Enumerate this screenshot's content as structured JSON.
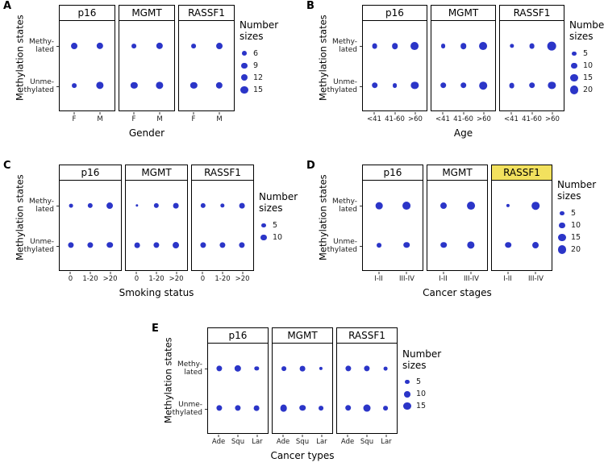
{
  "shared": {
    "ylabel": "Methylation states",
    "y_categories": [
      "Methylated",
      "Unmethylated"
    ],
    "y_tick_labels": [
      [
        "Methy-",
        "lated"
      ],
      [
        "Unme-",
        "thylated"
      ]
    ],
    "legend_title_lines": [
      "Number",
      "sizes"
    ],
    "dot_color": "#2b35c8",
    "highlight_color": "#f2e15e",
    "border_color": "#000000"
  },
  "chart_data": [
    {
      "id": "A",
      "panel_label": "A",
      "type": "bubble",
      "xlabel": "Gender",
      "x_categories": [
        "F",
        "M"
      ],
      "legend_values": [
        6,
        9,
        12,
        15
      ],
      "highlight_facet": "",
      "facets": [
        {
          "name": "p16",
          "values": {
            "Methylated": [
              11,
              12
            ],
            "Unmethylated": [
              6,
              15
            ]
          }
        },
        {
          "name": "MGMT",
          "values": {
            "Methylated": [
              6,
              12
            ],
            "Unmethylated": [
              12,
              15
            ]
          }
        },
        {
          "name": "RASSF1",
          "values": {
            "Methylated": [
              6,
              11
            ],
            "Unmethylated": [
              12,
              12
            ]
          }
        }
      ]
    },
    {
      "id": "B",
      "panel_label": "B",
      "type": "bubble",
      "xlabel": "Age",
      "x_categories": [
        "<41",
        "41-60",
        ">60"
      ],
      "legend_values": [
        5,
        10,
        15,
        20
      ],
      "highlight_facet": "",
      "facets": [
        {
          "name": "p16",
          "values": {
            "Methylated": [
              8,
              10,
              17
            ],
            "Unmethylated": [
              10,
              6,
              15
            ]
          }
        },
        {
          "name": "MGMT",
          "values": {
            "Methylated": [
              6,
              10,
              17
            ],
            "Unmethylated": [
              10,
              10,
              16
            ]
          }
        },
        {
          "name": "RASSF1",
          "values": {
            "Methylated": [
              5,
              8,
              20
            ],
            "Unmethylated": [
              8,
              10,
              15
            ]
          }
        }
      ]
    },
    {
      "id": "C",
      "panel_label": "C",
      "type": "bubble",
      "xlabel": "Smoking status",
      "x_categories": [
        "0",
        "1-20",
        ">20"
      ],
      "legend_values": [
        5,
        10
      ],
      "highlight_facet": "",
      "facets": [
        {
          "name": "p16",
          "values": {
            "Methylated": [
              4,
              7,
              11
            ],
            "Unmethylated": [
              9,
              9,
              10
            ]
          }
        },
        {
          "name": "MGMT",
          "values": {
            "Methylated": [
              2,
              7,
              8
            ],
            "Unmethylated": [
              8,
              9,
              11
            ]
          }
        },
        {
          "name": "RASSF1",
          "values": {
            "Methylated": [
              7,
              5,
              8
            ],
            "Unmethylated": [
              9,
              9,
              9
            ]
          }
        }
      ]
    },
    {
      "id": "D",
      "panel_label": "D",
      "type": "bubble",
      "xlabel": "Cancer stages",
      "x_categories": [
        "I-II",
        "III-IV"
      ],
      "legend_values": [
        5,
        10,
        15,
        20
      ],
      "highlight_facet": "RASSF1",
      "facets": [
        {
          "name": "p16",
          "values": {
            "Methylated": [
              13,
              17
            ],
            "Unmethylated": [
              6,
              10
            ]
          }
        },
        {
          "name": "MGMT",
          "values": {
            "Methylated": [
              11,
              17
            ],
            "Unmethylated": [
              10,
              15
            ]
          }
        },
        {
          "name": "RASSF1",
          "values": {
            "Methylated": [
              3,
              16
            ],
            "Unmethylated": [
              10,
              11
            ]
          }
        }
      ]
    },
    {
      "id": "E",
      "panel_label": "E",
      "type": "bubble",
      "xlabel": "Cancer types",
      "x_categories": [
        "Ade",
        "Squ",
        "Lar"
      ],
      "legend_values": [
        5,
        10,
        15
      ],
      "highlight_facet": "",
      "facets": [
        {
          "name": "p16",
          "values": {
            "Methylated": [
              9,
              12,
              5
            ],
            "Unmethylated": [
              9,
              9,
              8
            ]
          }
        },
        {
          "name": "MGMT",
          "values": {
            "Methylated": [
              6,
              8,
              3
            ],
            "Unmethylated": [
              13,
              10,
              6
            ]
          }
        },
        {
          "name": "RASSF1",
          "values": {
            "Methylated": [
              9,
              9,
              4
            ],
            "Unmethylated": [
              10,
              14,
              6
            ]
          }
        }
      ]
    }
  ]
}
